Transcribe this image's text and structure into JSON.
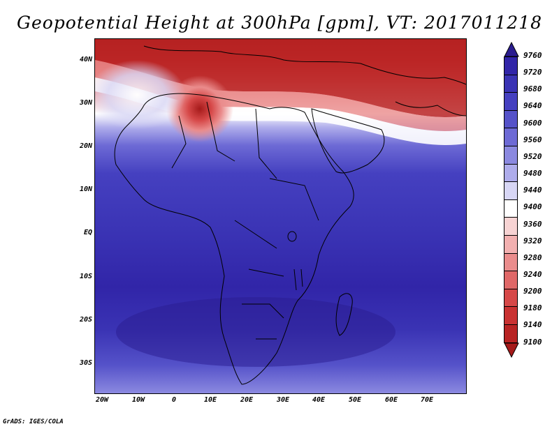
{
  "title": "Geopotential Height at 300hPa [gpm], VT: 2017011218",
  "footer": "GrADS: IGES/COLA",
  "map": {
    "lat_labels": [
      "40N",
      "30N",
      "20N",
      "10N",
      "EQ",
      "10S",
      "20S",
      "30S"
    ],
    "lon_labels": [
      "20W",
      "10W",
      "0",
      "10E",
      "20E",
      "30E",
      "40E",
      "50E",
      "60E",
      "70E"
    ],
    "extent": {
      "lon_min": -20,
      "lon_max": 80,
      "lat_min": -37,
      "lat_max": 44
    }
  },
  "colorbar": {
    "levels": [
      "9760",
      "9720",
      "9680",
      "9640",
      "9600",
      "9560",
      "9520",
      "9480",
      "9440",
      "9400",
      "9360",
      "9320",
      "9280",
      "9240",
      "9200",
      "9180",
      "9140",
      "9100"
    ],
    "colors": [
      "#2a1c8f",
      "#3125a8",
      "#3a33b4",
      "#4540c0",
      "#5552c9",
      "#6d6ad5",
      "#8b89e0",
      "#aeaceb",
      "#d7d6f5",
      "#ffffff",
      "#f7d3d3",
      "#f2b0b0",
      "#ea8c8c",
      "#e06868",
      "#d64848",
      "#c93232",
      "#b82323",
      "#a51a1a"
    ]
  }
}
